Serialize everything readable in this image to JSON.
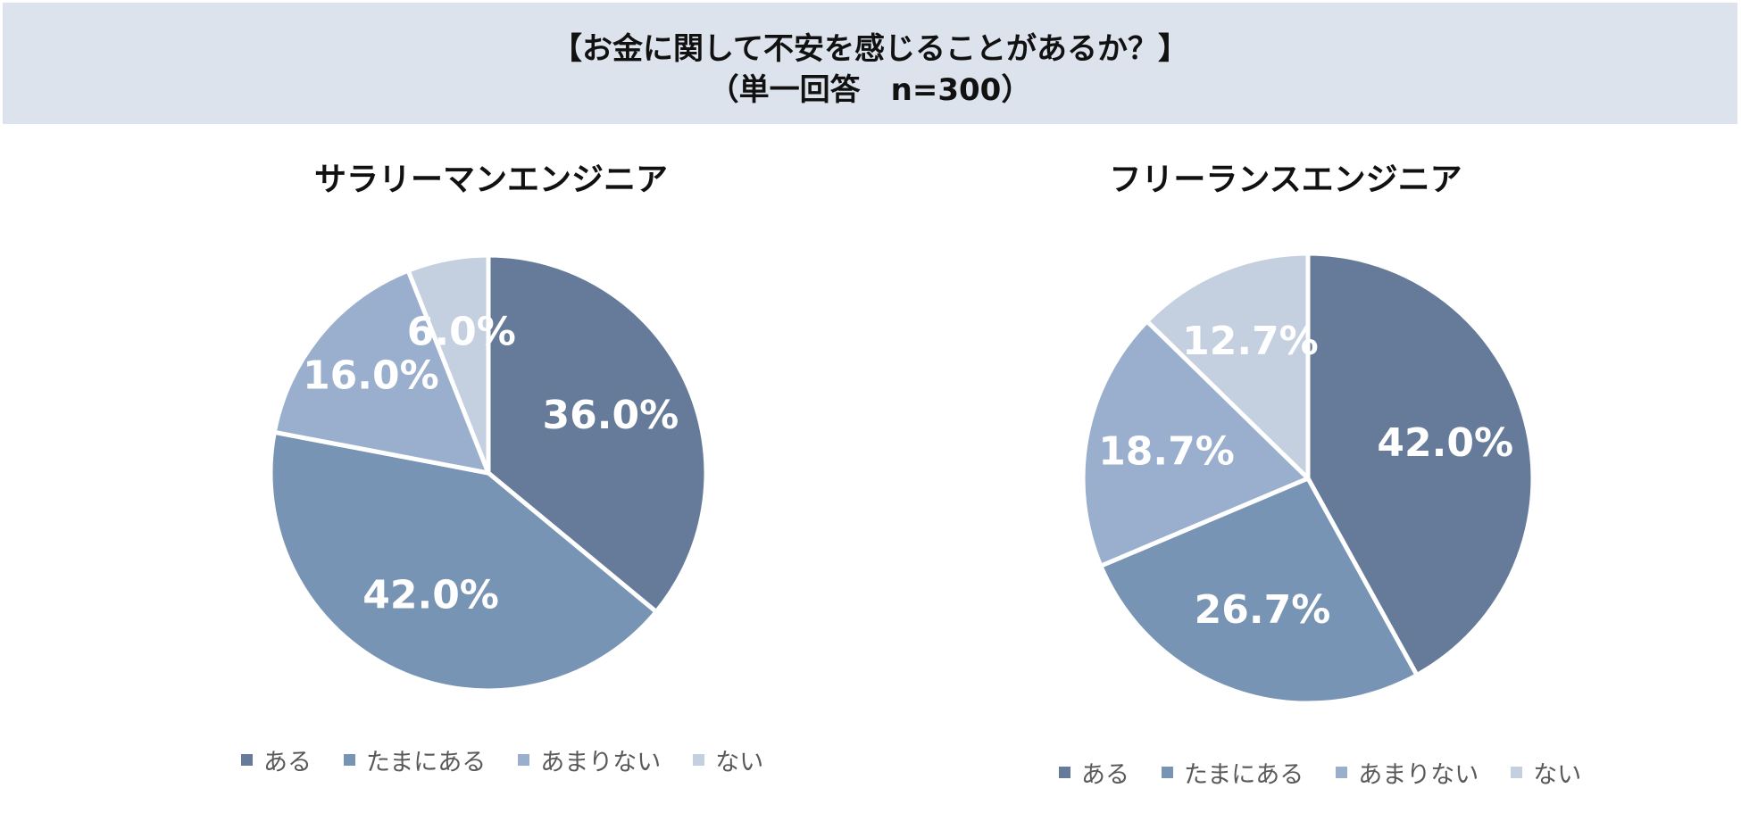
{
  "header": {
    "line1": "【お金に関して不安を感じることがあるか？】",
    "line2": "（単一回答　n=300）"
  },
  "chart_data": [
    {
      "type": "pie",
      "title": "サラリーマンエンジニア",
      "categories": [
        "ある",
        "たまにある",
        "あまりない",
        "ない"
      ],
      "values": [
        36.0,
        42.0,
        16.0,
        6.0
      ],
      "labels": [
        "36.0%",
        "42.0%",
        "16.0%",
        "6.0%"
      ],
      "colors": [
        "#657b99",
        "#7894b4",
        "#9aafcd",
        "#c4cfdf"
      ],
      "legend_position": "bottom"
    },
    {
      "type": "pie",
      "title": "フリーランスエンジニア",
      "categories": [
        "ある",
        "たまにある",
        "あまりない",
        "ない"
      ],
      "values": [
        42.0,
        26.7,
        18.7,
        12.7
      ],
      "labels": [
        "42.0%",
        "26.7%",
        "18.7%",
        "12.7%"
      ],
      "colors": [
        "#657b99",
        "#7894b4",
        "#9aafcd",
        "#c4cfdf"
      ],
      "legend_position": "bottom"
    }
  ]
}
